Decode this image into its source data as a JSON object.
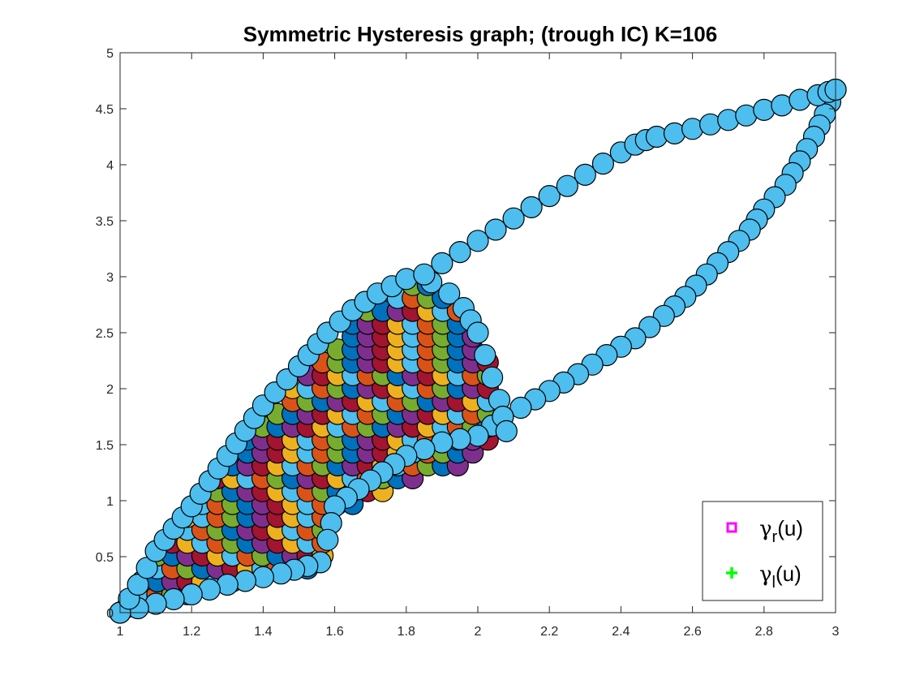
{
  "chart_data": {
    "type": "scatter",
    "title": "Symmetric Hysteresis graph; (trough IC) K=106",
    "xlim": [
      1,
      3
    ],
    "ylim": [
      0,
      5
    ],
    "x_ticks": [
      "1",
      "1.2",
      "1.4",
      "1.6",
      "1.8",
      "2",
      "2.2",
      "2.4",
      "2.6",
      "2.8",
      "3"
    ],
    "y_ticks": [
      "0",
      "0.5",
      "1",
      "1.5",
      "2",
      "2.5",
      "3",
      "3.5",
      "4",
      "4.5",
      "5"
    ],
    "marker_colors": [
      "#0072BD",
      "#D95319",
      "#EDB120",
      "#7E2F8E",
      "#77AC30",
      "#4DBEEE",
      "#A2142F"
    ],
    "outer_loop_color": "#4DBEEE",
    "legend": {
      "position": "bottom-right",
      "entries": [
        {
          "label": "γr(u)",
          "symbol": "γ",
          "subscript": "r",
          "suffix": "(u)",
          "marker": "square",
          "color": "#FF00FF"
        },
        {
          "label": "γl(u)",
          "symbol": "γ",
          "subscript": "l",
          "suffix": "(u)",
          "marker": "plus",
          "color": "#00FF00"
        }
      ]
    },
    "outer_upper_branch": [
      [
        1.0,
        0.0
      ],
      [
        1.05,
        0.25
      ],
      [
        1.1,
        0.55
      ],
      [
        1.2,
        0.95
      ],
      [
        1.3,
        1.4
      ],
      [
        1.4,
        1.85
      ],
      [
        1.5,
        2.2
      ],
      [
        1.58,
        2.5
      ],
      [
        1.65,
        2.7
      ],
      [
        1.72,
        2.85
      ],
      [
        1.8,
        2.98
      ],
      [
        1.85,
        3.02
      ],
      [
        1.9,
        3.12
      ],
      [
        1.95,
        3.22
      ],
      [
        2.0,
        3.32
      ],
      [
        2.05,
        3.42
      ],
      [
        2.1,
        3.52
      ],
      [
        2.15,
        3.62
      ],
      [
        2.2,
        3.72
      ],
      [
        2.25,
        3.81
      ],
      [
        2.3,
        3.91
      ],
      [
        2.35,
        4.01
      ],
      [
        2.4,
        4.11
      ],
      [
        2.44,
        4.18
      ],
      [
        2.47,
        4.22
      ],
      [
        2.5,
        4.25
      ],
      [
        2.55,
        4.28
      ],
      [
        2.6,
        4.32
      ],
      [
        2.65,
        4.36
      ],
      [
        2.7,
        4.4
      ],
      [
        2.75,
        4.44
      ],
      [
        2.8,
        4.49
      ],
      [
        2.85,
        4.53
      ],
      [
        2.9,
        4.58
      ],
      [
        2.95,
        4.62
      ],
      [
        2.98,
        4.65
      ],
      [
        3.0,
        4.67
      ]
    ],
    "outer_lower_branch": [
      [
        3.0,
        4.67
      ],
      [
        2.97,
        4.45
      ],
      [
        2.94,
        4.25
      ],
      [
        2.9,
        4.03
      ],
      [
        2.86,
        3.82
      ],
      [
        2.8,
        3.6
      ],
      [
        2.76,
        3.42
      ],
      [
        2.7,
        3.22
      ],
      [
        2.64,
        3.02
      ],
      [
        2.58,
        2.82
      ],
      [
        2.52,
        2.65
      ],
      [
        2.44,
        2.45
      ],
      [
        2.36,
        2.3
      ],
      [
        2.28,
        2.13
      ],
      [
        2.2,
        1.98
      ],
      [
        2.12,
        1.83
      ],
      [
        2.07,
        1.75
      ],
      [
        2.04,
        1.67
      ],
      [
        2.0,
        1.58
      ],
      [
        1.9,
        1.52
      ],
      [
        1.8,
        1.4
      ],
      [
        1.7,
        1.18
      ],
      [
        1.6,
        0.95
      ],
      [
        1.58,
        0.65
      ],
      [
        1.56,
        0.45
      ],
      [
        1.45,
        0.35
      ],
      [
        1.3,
        0.25
      ],
      [
        1.15,
        0.12
      ],
      [
        1.0,
        0.0
      ]
    ],
    "inner_return_branch": [
      [
        1.87,
        2.95
      ],
      [
        1.92,
        2.85
      ],
      [
        1.96,
        2.72
      ],
      [
        2.0,
        2.5
      ],
      [
        2.02,
        2.3
      ],
      [
        2.04,
        2.1
      ],
      [
        2.06,
        1.9
      ],
      [
        2.07,
        1.75
      ],
      [
        2.08,
        1.62
      ]
    ],
    "filled_region": [
      [
        1.0,
        0.0
      ],
      [
        1.1,
        0.5
      ],
      [
        1.3,
        1.35
      ],
      [
        1.5,
        2.1
      ],
      [
        1.7,
        2.75
      ],
      [
        1.85,
        3.0
      ],
      [
        1.95,
        2.75
      ],
      [
        2.05,
        2.1
      ],
      [
        2.07,
        1.55
      ],
      [
        2.0,
        1.35
      ],
      [
        1.75,
        1.1
      ],
      [
        1.6,
        0.85
      ],
      [
        1.56,
        0.4
      ],
      [
        1.3,
        0.25
      ],
      [
        1.0,
        0.0
      ]
    ]
  }
}
